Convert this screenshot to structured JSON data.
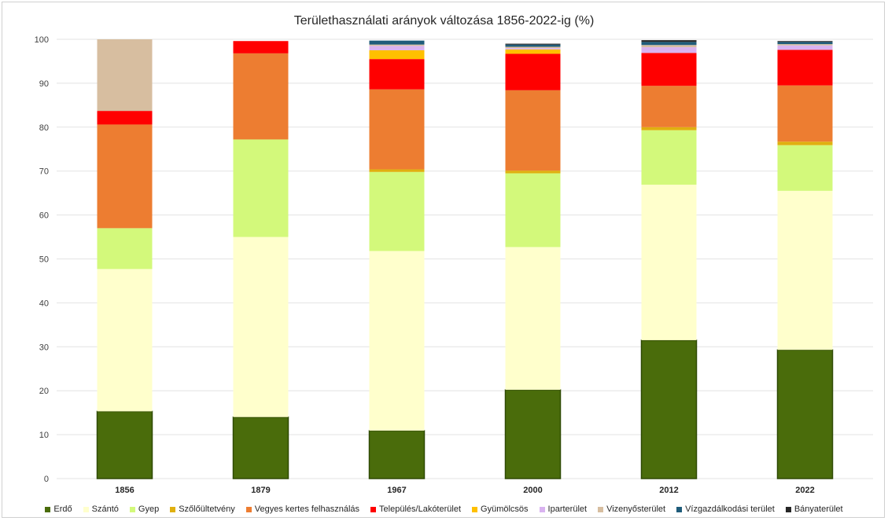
{
  "chart_data": {
    "type": "bar",
    "stacked": true,
    "title": "Területhasználati arányok változása 1856-2022-ig (%)",
    "xlabel": "",
    "ylabel": "",
    "ylim": [
      0,
      100
    ],
    "yticks": [
      "0",
      "10",
      "20",
      "30",
      "40",
      "50",
      "60",
      "70",
      "80",
      "90",
      "100"
    ],
    "categories": [
      "1856",
      "1879",
      "1967",
      "2000",
      "2012",
      "2022"
    ],
    "legend_position": "bottom",
    "series": [
      {
        "name": "Erdő",
        "color": "#4a6c0b",
        "values": [
          15.3,
          14.0,
          10.9,
          20.2,
          31.5,
          29.3
        ]
      },
      {
        "name": "Szántó",
        "color": "#ffffcc",
        "values": [
          32.4,
          41.0,
          40.9,
          32.5,
          35.4,
          36.2
        ]
      },
      {
        "name": "Gyep",
        "color": "#d3f97b",
        "values": [
          9.3,
          22.2,
          18.0,
          16.8,
          12.4,
          10.4
        ]
      },
      {
        "name": "Szőlőültetvény",
        "color": "#e0b00f",
        "values": [
          0.0,
          0.0,
          0.6,
          0.6,
          0.7,
          0.8
        ]
      },
      {
        "name": "Vegyes kertes felhasználás",
        "color": "#ed7d31",
        "values": [
          23.6,
          19.6,
          18.2,
          18.3,
          9.4,
          12.8
        ]
      },
      {
        "name": "Település/Lakóterület",
        "color": "#ff0000",
        "values": [
          3.1,
          2.8,
          6.9,
          8.3,
          7.5,
          8.1
        ]
      },
      {
        "name": "Gyümölcsös",
        "color": "#ffc000",
        "values": [
          0.0,
          0.0,
          2.0,
          1.0,
          0.0,
          0.0
        ]
      },
      {
        "name": "Iparterület",
        "color": "#d9b3f0",
        "values": [
          0.0,
          0.0,
          1.0,
          0.3,
          1.3,
          1.0
        ]
      },
      {
        "name": "Vizenyősterület",
        "color": "#d7bea0",
        "values": [
          16.3,
          0.0,
          0.3,
          0.3,
          0.5,
          0.3
        ]
      },
      {
        "name": "Vízgazdálkodási terület",
        "color": "#1f5c7a",
        "values": [
          0.0,
          0.0,
          0.9,
          0.5,
          0.7,
          0.5
        ]
      },
      {
        "name": "Bányaterület",
        "color": "#262626",
        "values": [
          0.0,
          0.0,
          0.0,
          0.2,
          0.4,
          0.2
        ]
      }
    ]
  }
}
